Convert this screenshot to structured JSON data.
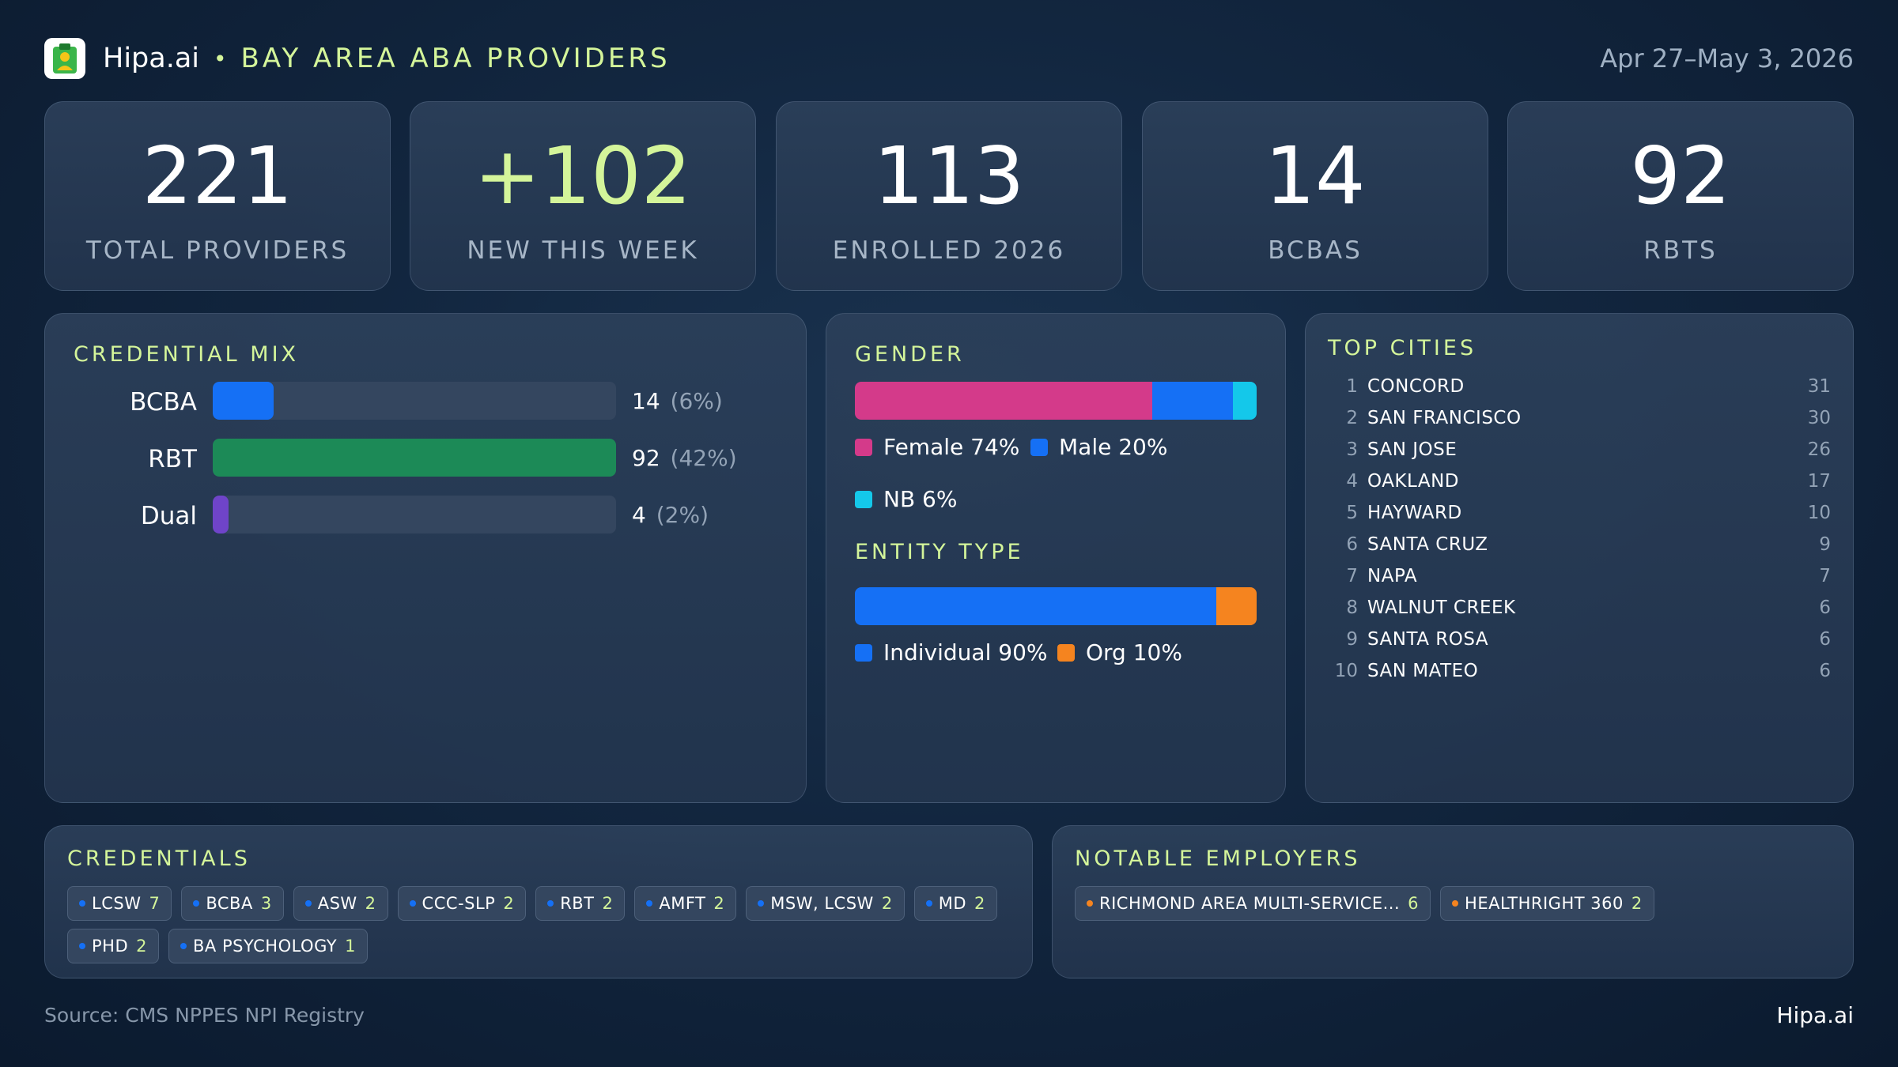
{
  "header": {
    "logo_icon": "clipboard-person-icon",
    "brand": "Hipa.ai",
    "separator": "•",
    "title": "BAY AREA ABA PROVIDERS",
    "date_range": "Apr 27–May 3, 2026"
  },
  "stats": [
    {
      "value": "221",
      "label": "TOTAL PROVIDERS"
    },
    {
      "value": "+102",
      "label": "NEW THIS WEEK"
    },
    {
      "value": "113",
      "label": "ENROLLED 2026"
    },
    {
      "value": "14",
      "label": "BCBAS"
    },
    {
      "value": "92",
      "label": "RBTS"
    }
  ],
  "credential_mix": {
    "title": "CREDENTIAL MIX",
    "rows": [
      {
        "name": "BCBA",
        "value": "14",
        "pct": "(6%)",
        "fraction": 0.15,
        "color": "#1570f5"
      },
      {
        "name": "RBT",
        "value": "92",
        "pct": "(42%)",
        "fraction": 1.0,
        "color": "#1c8a57"
      },
      {
        "name": "Dual",
        "value": "4",
        "pct": "(2%)",
        "fraction": 0.04,
        "color": "#6f44c9"
      }
    ]
  },
  "gender": {
    "title": "GENDER",
    "segments": [
      {
        "label": "Female 74%",
        "share": 74,
        "color": "#d43a8a"
      },
      {
        "label": "Male 20%",
        "share": 20,
        "color": "#1570f5"
      },
      {
        "label": "NB 6%",
        "share": 6,
        "color": "#14c8ea"
      }
    ]
  },
  "entity_type": {
    "title": "ENTITY TYPE",
    "segments": [
      {
        "label": "Individual 90%",
        "share": 90,
        "color": "#1570f5"
      },
      {
        "label": "Org 10%",
        "share": 10,
        "color": "#f5841f"
      }
    ]
  },
  "top_cities": {
    "title": "TOP CITIES",
    "rows": [
      {
        "rank": "1",
        "name": "CONCORD",
        "count": "31"
      },
      {
        "rank": "2",
        "name": "SAN FRANCISCO",
        "count": "30"
      },
      {
        "rank": "3",
        "name": "SAN JOSE",
        "count": "26"
      },
      {
        "rank": "4",
        "name": "OAKLAND",
        "count": "17"
      },
      {
        "rank": "5",
        "name": "HAYWARD",
        "count": "10"
      },
      {
        "rank": "6",
        "name": "SANTA CRUZ",
        "count": "9"
      },
      {
        "rank": "7",
        "name": "NAPA",
        "count": "7"
      },
      {
        "rank": "8",
        "name": "WALNUT CREEK",
        "count": "6"
      },
      {
        "rank": "9",
        "name": "SANTA ROSA",
        "count": "6"
      },
      {
        "rank": "10",
        "name": "SAN MATEO",
        "count": "6"
      }
    ]
  },
  "credentials": {
    "title": "CREDENTIALS",
    "dot_color": "#1570f5",
    "chips": [
      {
        "label": "LCSW",
        "count": "7"
      },
      {
        "label": "BCBA",
        "count": "3"
      },
      {
        "label": "ASW",
        "count": "2"
      },
      {
        "label": "CCC-SLP",
        "count": "2"
      },
      {
        "label": "RBT",
        "count": "2"
      },
      {
        "label": "AMFT",
        "count": "2"
      },
      {
        "label": "MSW, LCSW",
        "count": "2"
      },
      {
        "label": "MD",
        "count": "2"
      },
      {
        "label": "PHD",
        "count": "2"
      },
      {
        "label": "BA PSYCHOLOGY",
        "count": "1"
      }
    ]
  },
  "employers": {
    "title": "NOTABLE EMPLOYERS",
    "dot_color": "#f5841f",
    "chips": [
      {
        "label": "RICHMOND AREA MULTI-SERVICE...",
        "count": "6"
      },
      {
        "label": "HEALTHRIGHT 360",
        "count": "2"
      }
    ]
  },
  "footer": {
    "source": "Source: CMS NPPES NPI Registry",
    "brand": "Hipa.ai"
  }
}
